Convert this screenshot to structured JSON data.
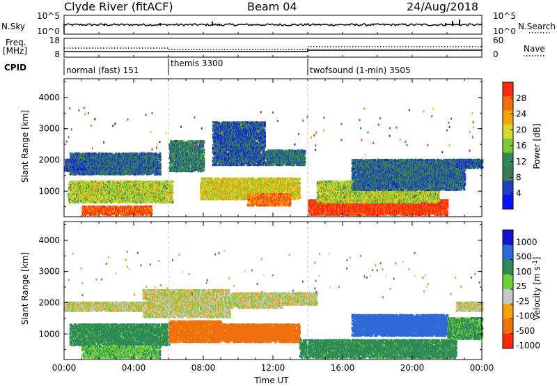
{
  "header": {
    "station": "Clyde River (fitACF)",
    "beam": "Beam 04",
    "date": "24/Aug/2018"
  },
  "status_panels": {
    "nsky_label": "N.Sky",
    "nsearch_label": "N.Search",
    "sky_ticks_left": [
      "10^5",
      "10^0"
    ],
    "sky_ticks_right": [
      "10^5",
      "10^0"
    ],
    "freq_label": "Freq.",
    "freq_unit": "[MHz]",
    "freq_ticks": [
      "18",
      "8"
    ],
    "nave_label": "Nave",
    "nave_ticks": [
      "60",
      "0"
    ],
    "cpid_label": "CPID",
    "cpid_modes": [
      {
        "name": "normal (fast) 151",
        "start_hour": 0
      },
      {
        "name": "themis 3300",
        "start_hour": 6
      },
      {
        "name": "twofsound (1-min) 3505",
        "start_hour": 14
      }
    ]
  },
  "chart_data": [
    {
      "type": "heatmap",
      "panel": "power",
      "ylabel": "Slant Range [km]",
      "y_ticks": [
        1000,
        2000,
        3000,
        4000
      ],
      "ylim": [
        180,
        4600
      ],
      "xlim": [
        0,
        24
      ],
      "colorbar_label": "Power [dB]",
      "colorbar_ticks": [
        4,
        8,
        12,
        16,
        20,
        24,
        28
      ],
      "colorbar_range": [
        0,
        32
      ],
      "colors": [
        "#0a10ff",
        "#1f3fbf",
        "#3a7a5a",
        "#2e8b57",
        "#7cc83c",
        "#d8d830",
        "#f7a20a",
        "#f07010",
        "#ff2a10"
      ],
      "mode_change_hours": [
        6,
        14
      ],
      "echo_regions": [
        {
          "t0": 0.2,
          "t1": 6.2,
          "r0": 600,
          "r1": 1300,
          "level": 18
        },
        {
          "t0": 0.3,
          "t1": 5.5,
          "r0": 1500,
          "r1": 2200,
          "level": 8
        },
        {
          "t0": 1.0,
          "t1": 5.0,
          "r0": 200,
          "r1": 500,
          "level": 28
        },
        {
          "t0": 0.0,
          "t1": 1.2,
          "r0": 1600,
          "r1": 2000,
          "level": 6
        },
        {
          "t0": 6.0,
          "t1": 8.0,
          "r0": 1600,
          "r1": 2600,
          "level": 10
        },
        {
          "t0": 7.8,
          "t1": 13.5,
          "r0": 700,
          "r1": 1400,
          "level": 20
        },
        {
          "t0": 8.5,
          "t1": 11.5,
          "r0": 1800,
          "r1": 3200,
          "level": 7
        },
        {
          "t0": 10.5,
          "t1": 13.0,
          "r0": 500,
          "r1": 900,
          "level": 26
        },
        {
          "t0": 11.5,
          "t1": 13.8,
          "r0": 1800,
          "r1": 2300,
          "level": 9
        },
        {
          "t0": 14.0,
          "t1": 22.0,
          "r0": 200,
          "r1": 700,
          "level": 30
        },
        {
          "t0": 14.5,
          "t1": 21.5,
          "r0": 600,
          "r1": 1300,
          "level": 18
        },
        {
          "t0": 16.5,
          "t1": 23.0,
          "r0": 1000,
          "r1": 2000,
          "level": 8
        },
        {
          "t0": 22.5,
          "t1": 24.0,
          "r0": 1700,
          "r1": 2000,
          "level": 7
        }
      ]
    },
    {
      "type": "heatmap",
      "panel": "velocity",
      "ylabel": "Slant Range [km]",
      "y_ticks": [
        1000,
        2000,
        3000,
        4000
      ],
      "ylim": [
        180,
        4600
      ],
      "xlim": [
        0,
        24
      ],
      "xlabel": "Time UT",
      "x_ticks": [
        "00:00",
        "04:00",
        "08:00",
        "12:00",
        "16:00",
        "20:00",
        "00:00"
      ],
      "colorbar_label": "Velocity [m s^-1]",
      "colorbar_ticks": [
        1000,
        500,
        100,
        25,
        -25,
        -100,
        -500,
        -1000
      ],
      "colors": [
        "#1414c8",
        "#2e6bd6",
        "#2e8b57",
        "#6fd13a",
        "#c8c8c8",
        "#f7a20a",
        "#f07010",
        "#ff2a10"
      ],
      "echo_regions": [
        {
          "t0": 0.0,
          "t1": 5.0,
          "r0": 1700,
          "r1": 2000,
          "v": 0
        },
        {
          "t0": 0.3,
          "t1": 6.0,
          "r0": 600,
          "r1": 1300,
          "v": 150
        },
        {
          "t0": 1.0,
          "t1": 5.5,
          "r0": 200,
          "r1": 600,
          "v": 80
        },
        {
          "t0": 4.5,
          "t1": 9.5,
          "r0": 1500,
          "r1": 2400,
          "v": 0
        },
        {
          "t0": 6.0,
          "t1": 9.0,
          "r0": 700,
          "r1": 1400,
          "v": -150
        },
        {
          "t0": 8.5,
          "t1": 13.5,
          "r0": 700,
          "r1": 1300,
          "v": -250
        },
        {
          "t0": 9.5,
          "t1": 12.5,
          "r0": 1800,
          "r1": 2300,
          "v": 0
        },
        {
          "t0": 12.5,
          "t1": 14.5,
          "r0": 1900,
          "r1": 2300,
          "v": 0
        },
        {
          "t0": 13.5,
          "t1": 22.5,
          "r0": 200,
          "r1": 800,
          "v": 150
        },
        {
          "t0": 16.5,
          "t1": 22.0,
          "r0": 900,
          "r1": 1600,
          "v": 700
        },
        {
          "t0": 22.0,
          "t1": 24.0,
          "r0": 800,
          "r1": 1500,
          "v": 120
        },
        {
          "t0": 22.5,
          "t1": 24.0,
          "r0": 1700,
          "r1": 2000,
          "v": 0
        }
      ]
    }
  ]
}
